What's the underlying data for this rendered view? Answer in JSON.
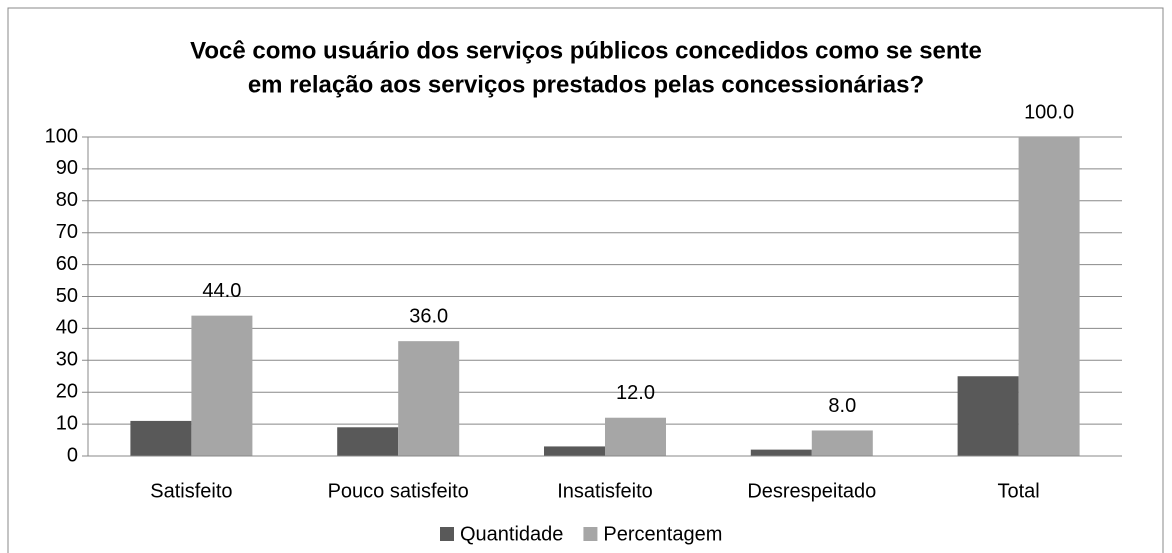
{
  "chart_data": {
    "type": "bar",
    "title": [
      "Você como usuário dos serviços públicos concedidos como se sente",
      "em relação aos serviços prestados pelas concessionárias?"
    ],
    "categories": [
      "Satisfeito",
      "Pouco satisfeito",
      "Insatisfeito",
      "Desrespeitado",
      "Total"
    ],
    "series": [
      {
        "name": "Quantidade",
        "color": "#595959",
        "values": [
          11,
          9,
          3,
          2,
          25
        ]
      },
      {
        "name": "Percentagem",
        "color": "#a6a6a6",
        "values": [
          44,
          36,
          12,
          8,
          100
        ],
        "value_labels": [
          "44.0",
          "36.0",
          "12.0",
          "8.0",
          "100.0"
        ]
      }
    ],
    "ylim": [
      0,
      100
    ],
    "yticks": [
      0,
      10,
      20,
      30,
      40,
      50,
      60,
      70,
      80,
      90,
      100
    ],
    "grid": true,
    "legend": "bottom"
  }
}
